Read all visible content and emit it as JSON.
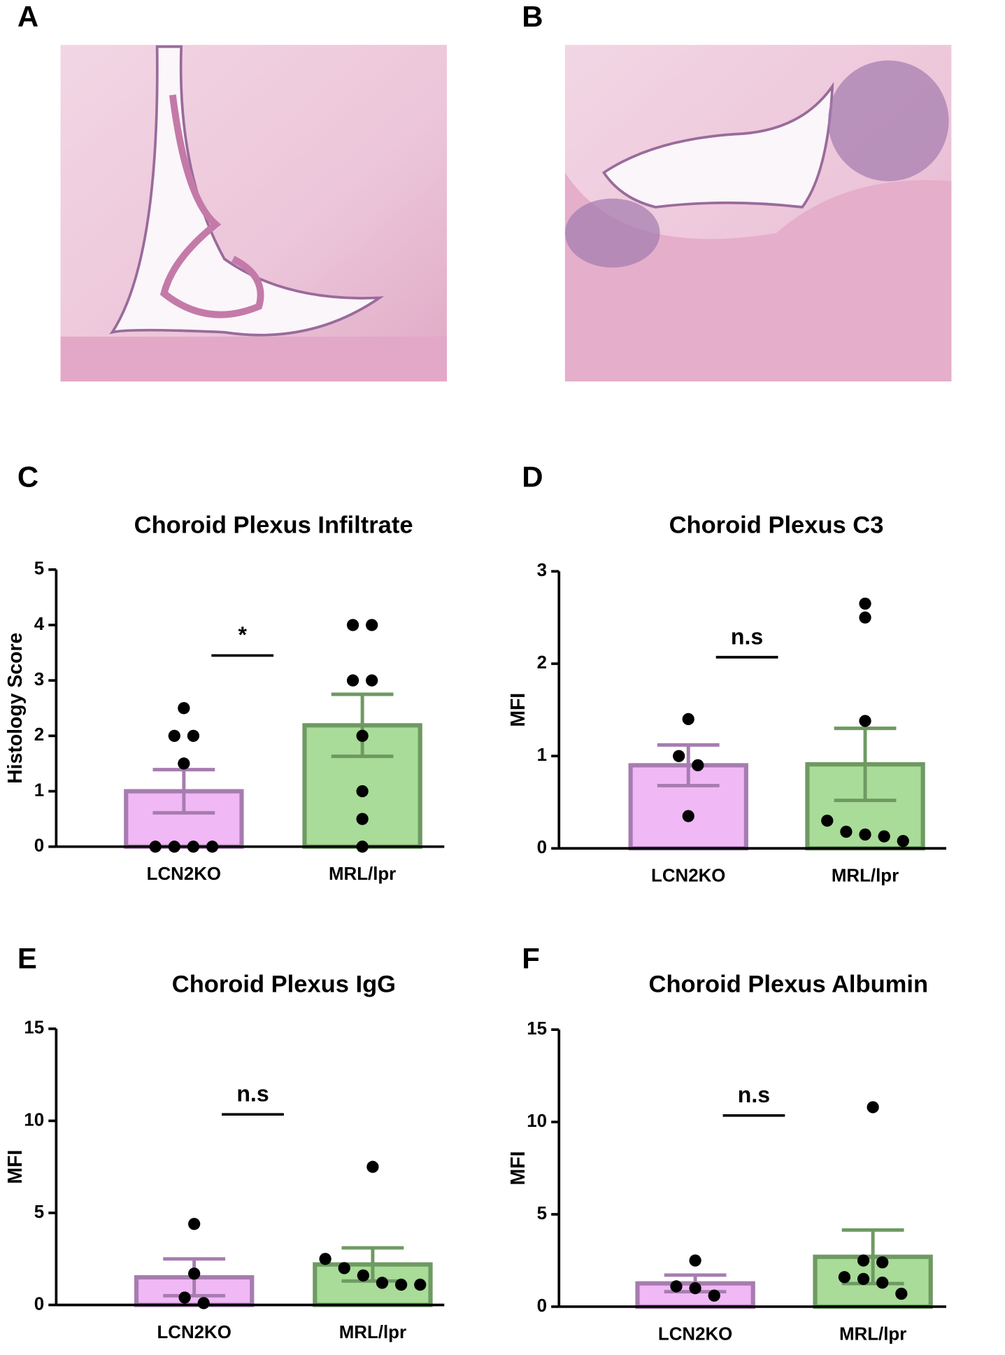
{
  "images": [
    {
      "panel_label": "A"
    },
    {
      "panel_label": "B"
    }
  ],
  "chart_data": [
    {
      "type": "bar",
      "panel_label": "C",
      "title": "Choroid Plexus Infiltrate",
      "ylabel": "Histology Score",
      "categories": [
        "LCN2KO",
        "MRL/lpr"
      ],
      "values": [
        1.0,
        2.19
      ],
      "errors": [
        0.39,
        0.56
      ],
      "points": [
        [
          2.5,
          2,
          2,
          1.5,
          0,
          0,
          0,
          0
        ],
        [
          4,
          4,
          3,
          3,
          2,
          1,
          0.5,
          0
        ]
      ],
      "colors": [
        "#f0b8f5",
        "#a8dc98"
      ],
      "edge_colors": [
        "#a77cb0",
        "#6e9a62"
      ],
      "point_color": "#000000",
      "annotation": "*",
      "ylim": [
        0,
        5
      ],
      "yticks": [
        0,
        1,
        2,
        3,
        4,
        5
      ]
    },
    {
      "type": "bar",
      "panel_label": "D",
      "title": "Choroid Plexus C3",
      "ylabel": "MFI",
      "categories": [
        "LCN2KO",
        "MRL/lpr"
      ],
      "values": [
        0.9,
        0.91
      ],
      "errors": [
        0.22,
        0.39
      ],
      "points": [
        [
          1.4,
          1.0,
          0.9,
          0.35
        ],
        [
          2.65,
          2.5,
          1.38,
          0.3,
          0.18,
          0.08,
          0.13,
          0.15
        ]
      ],
      "colors": [
        "#f0b8f5",
        "#a8dc98"
      ],
      "edge_colors": [
        "#a77cb0",
        "#6e9a62"
      ],
      "point_color": "#000000",
      "annotation": "n.s",
      "ylim": [
        0,
        3
      ],
      "yticks": [
        0,
        1,
        2,
        3
      ]
    },
    {
      "type": "bar",
      "panel_label": "E",
      "title": "Choroid Plexus IgG",
      "ylabel": "MFI",
      "categories": [
        "LCN2KO",
        "MRL/lpr"
      ],
      "values": [
        1.5,
        2.2
      ],
      "errors": [
        1.0,
        0.9
      ],
      "points": [
        [
          4.4,
          1.7,
          0.4,
          0.1
        ],
        [
          7.5,
          2.5,
          2.0,
          1.6,
          1.2,
          1.1,
          1.1
        ]
      ],
      "colors": [
        "#f0b8f5",
        "#a8dc98"
      ],
      "edge_colors": [
        "#a77cb0",
        "#6e9a62"
      ],
      "point_color": "#000000",
      "annotation": "n.s",
      "ylim": [
        0,
        15
      ],
      "yticks": [
        0,
        5,
        10,
        15
      ]
    },
    {
      "type": "bar",
      "panel_label": "F",
      "title": "Choroid Plexus Albumin",
      "ylabel": "MFI",
      "categories": [
        "LCN2KO",
        "MRL/lpr"
      ],
      "values": [
        1.26,
        2.7
      ],
      "errors": [
        0.45,
        1.45
      ],
      "points": [
        [
          2.5,
          1.1,
          1.0,
          0.6
        ],
        [
          10.8,
          2.5,
          2.4,
          1.6,
          1.5,
          1.3,
          0.7
        ]
      ],
      "colors": [
        "#f0b8f5",
        "#a8dc98"
      ],
      "edge_colors": [
        "#a77cb0",
        "#6e9a62"
      ],
      "point_color": "#000000",
      "annotation": "n.s",
      "ylim": [
        0,
        15
      ],
      "yticks": [
        0,
        5,
        10,
        15
      ]
    }
  ]
}
